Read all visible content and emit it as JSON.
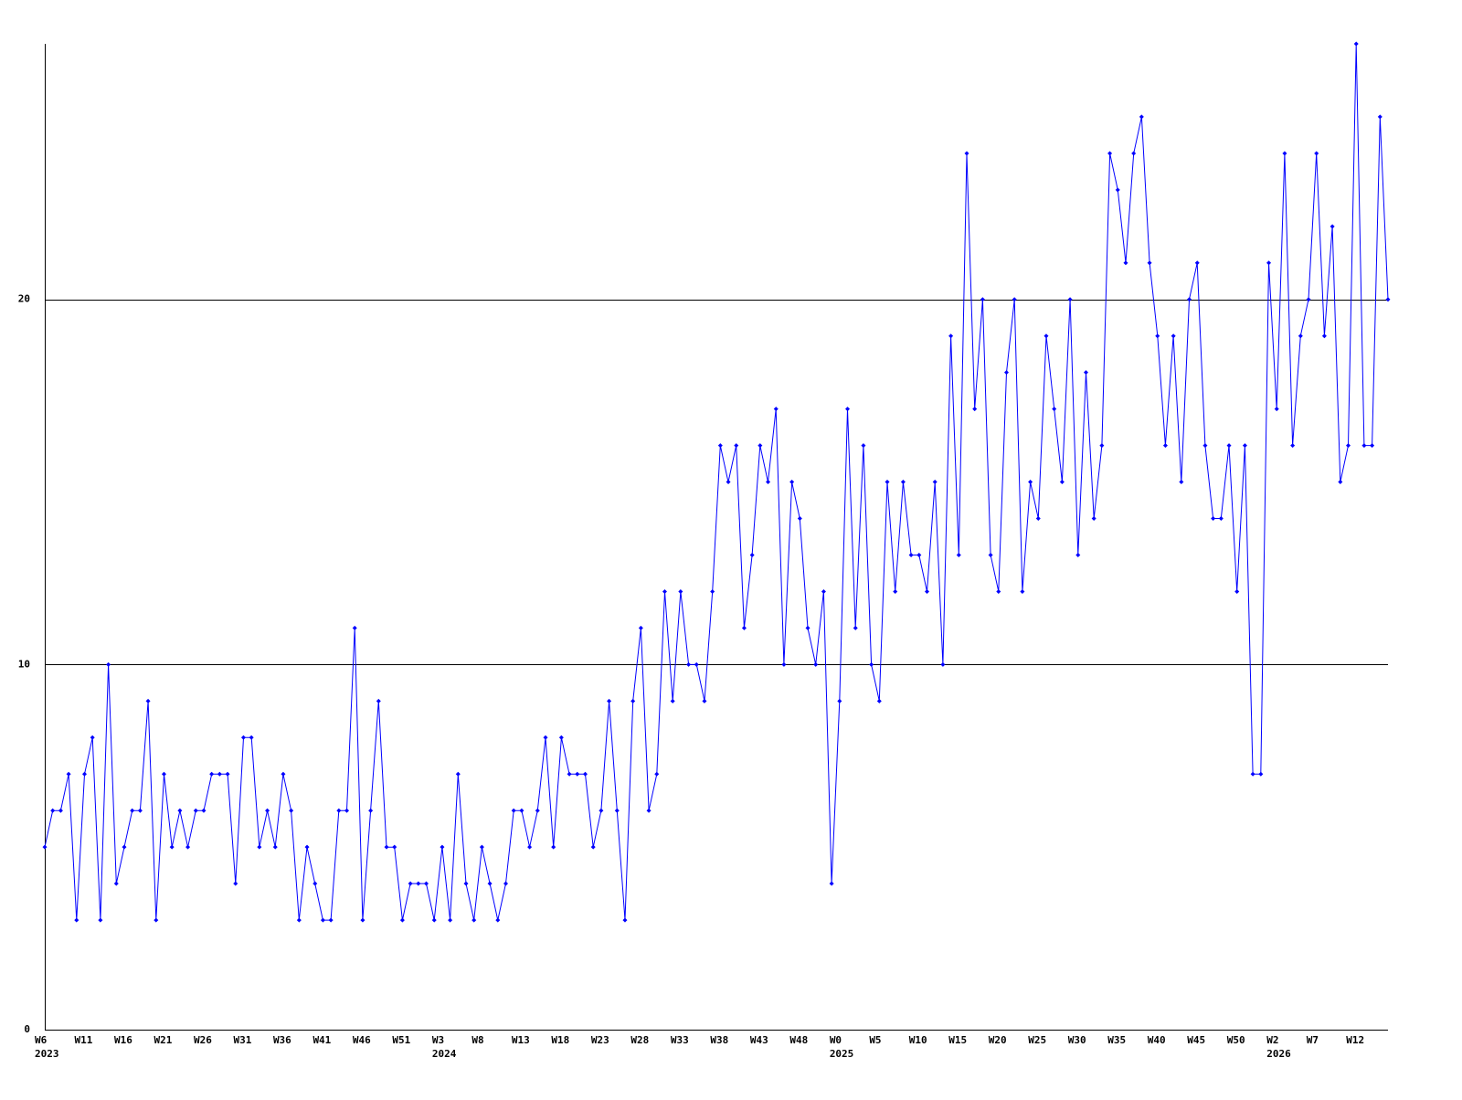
{
  "chart_data": {
    "type": "line",
    "color": "#0000ff",
    "categories": [
      "W6",
      null,
      null,
      null,
      null,
      "W11",
      null,
      null,
      null,
      null,
      "W16",
      null,
      null,
      null,
      null,
      "W21",
      null,
      null,
      null,
      null,
      "W26",
      null,
      null,
      null,
      null,
      "W31",
      null,
      null,
      null,
      null,
      "W36",
      null,
      null,
      null,
      null,
      "W41",
      null,
      null,
      null,
      null,
      "W46",
      null,
      null,
      null,
      null,
      "W51",
      null,
      null,
      null,
      null,
      "W3",
      null,
      null,
      null,
      null,
      "W8",
      null,
      null,
      null,
      null,
      "W13",
      null,
      null,
      null,
      null,
      "W18",
      null,
      null,
      null,
      null,
      "W23",
      null,
      null,
      null,
      null,
      "W28",
      null,
      null,
      null,
      null,
      "W33",
      null,
      null,
      null,
      null,
      "W38",
      null,
      null,
      null,
      null,
      "W43",
      null,
      null,
      null,
      null,
      "W48",
      null,
      null,
      null,
      null,
      "W0",
      null,
      null,
      null,
      null,
      "W5",
      null,
      null,
      null,
      null,
      "W10",
      null,
      null,
      null,
      null,
      "W15",
      null,
      null,
      null,
      null,
      "W20",
      null,
      null,
      null,
      null,
      "W25",
      null,
      null,
      null,
      null,
      "W30",
      null,
      null,
      null,
      null,
      "W35",
      null,
      null,
      null,
      null,
      "W40",
      null,
      null,
      null,
      null,
      "W45",
      null,
      null,
      null,
      null,
      "W50",
      null,
      null,
      null,
      null,
      "W2",
      null,
      null,
      null,
      null,
      "W7",
      null,
      null,
      null,
      null,
      "W12",
      null,
      null,
      null,
      null
    ],
    "years": [
      "2023",
      null,
      null,
      null,
      null,
      null,
      null,
      null,
      null,
      null,
      null,
      null,
      null,
      null,
      null,
      null,
      null,
      null,
      null,
      null,
      null,
      null,
      null,
      null,
      null,
      null,
      null,
      null,
      null,
      null,
      null,
      null,
      null,
      null,
      null,
      null,
      null,
      null,
      null,
      null,
      null,
      null,
      null,
      null,
      null,
      null,
      null,
      null,
      null,
      null,
      "2024",
      null,
      null,
      null,
      null,
      null,
      null,
      null,
      null,
      null,
      null,
      null,
      null,
      null,
      null,
      null,
      null,
      null,
      null,
      null,
      null,
      null,
      null,
      null,
      null,
      null,
      null,
      null,
      null,
      null,
      null,
      null,
      null,
      null,
      null,
      null,
      null,
      null,
      null,
      null,
      null,
      null,
      null,
      null,
      null,
      null,
      null,
      null,
      null,
      null,
      "2025",
      null,
      null,
      null,
      null,
      null,
      null,
      null,
      null,
      null,
      null,
      null,
      null,
      null,
      null,
      null,
      null,
      null,
      null,
      null,
      null,
      null,
      null,
      null,
      null,
      null,
      null,
      null,
      null,
      null,
      null,
      null,
      null,
      null,
      null,
      null,
      null,
      null,
      null,
      null,
      null,
      null,
      null,
      null,
      null,
      null,
      null,
      null,
      null,
      null,
      null,
      null,
      null,
      null,
      null,
      "2026",
      null,
      null,
      null,
      null,
      null,
      null,
      null,
      null,
      null,
      null,
      null,
      null,
      null,
      null
    ],
    "values": [
      5,
      6,
      6,
      7,
      3,
      7,
      8,
      3,
      10,
      4,
      5,
      6,
      6,
      9,
      3,
      7,
      5,
      6,
      5,
      6,
      6,
      7,
      7,
      7,
      4,
      8,
      8,
      5,
      6,
      5,
      7,
      6,
      3,
      5,
      4,
      3,
      3,
      6,
      6,
      11,
      3,
      6,
      9,
      5,
      5,
      3,
      4,
      4,
      4,
      3,
      5,
      3,
      7,
      4,
      3,
      5,
      4,
      3,
      4,
      6,
      6,
      5,
      6,
      8,
      5,
      8,
      7,
      7,
      7,
      5,
      6,
      9,
      6,
      3,
      9,
      11,
      6,
      7,
      12,
      9,
      12,
      10,
      10,
      9,
      12,
      16,
      15,
      16,
      11,
      13,
      16,
      15,
      17,
      10,
      15,
      14,
      11,
      10,
      12,
      4,
      9,
      17,
      11,
      16,
      10,
      9,
      15,
      12,
      15,
      13,
      13,
      12,
      15,
      10,
      19,
      13,
      24,
      17,
      20,
      13,
      12,
      18,
      20,
      12,
      15,
      14,
      19,
      17,
      15,
      20,
      13,
      18,
      14,
      16,
      24,
      23,
      21,
      24,
      25,
      21,
      19,
      16,
      19,
      15,
      20,
      21,
      16,
      14,
      14,
      16,
      12,
      16,
      7,
      7,
      21,
      17,
      24,
      16,
      19,
      20,
      24,
      19,
      22,
      15,
      16,
      27,
      16,
      16,
      25,
      20
    ],
    "ylim": [
      0,
      27
    ],
    "yticks": [
      0,
      10,
      20
    ],
    "grid": true
  }
}
